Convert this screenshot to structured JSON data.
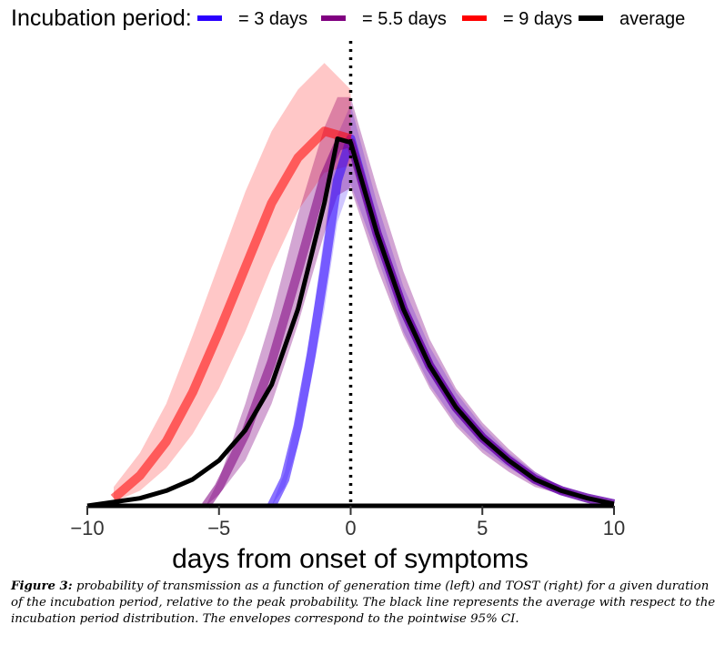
{
  "legend": {
    "title": "Incubation period:",
    "items": [
      {
        "label": "= 3 days",
        "color": "#2a00ff"
      },
      {
        "label": "= 5.5 days",
        "color": "#800080"
      },
      {
        "label": "= 9 days",
        "color": "#ff0000"
      },
      {
        "label": "average",
        "color": "#000000"
      }
    ]
  },
  "caption": {
    "label": "Figure 3:",
    "text": "probability of transmission as a function of generation time (left) and TOST (right) for a given duration of the incubation period, relative to the peak probability. The black line represents the average with respect to the incubation period distribution. The envelopes correspond to the pointwise 95% CI."
  },
  "chart_data": {
    "type": "line",
    "xlabel": "days from onset of symptoms",
    "ylabel": "",
    "xlim": [
      -10,
      10
    ],
    "ylim": [
      0,
      1.0
    ],
    "x_ticks": [
      -10,
      -5,
      0,
      5,
      10
    ],
    "x_tick_labels": [
      "−10",
      "−5",
      "0",
      "5",
      "10"
    ],
    "vertical_reference_line": 0,
    "grid": false,
    "legend_position": "top",
    "series": [
      {
        "name": "= 3 days",
        "color": "#2a00ff",
        "x": [
          -3,
          -2.5,
          -2,
          -1.5,
          -1,
          -0.5,
          0,
          1,
          2,
          3,
          4,
          5,
          6,
          7,
          8,
          9,
          10
        ],
        "y": [
          0,
          0.07,
          0.21,
          0.4,
          0.62,
          0.86,
          0.97,
          0.72,
          0.52,
          0.37,
          0.26,
          0.18,
          0.12,
          0.07,
          0.04,
          0.02,
          0.005
        ],
        "lower": [
          0,
          0.05,
          0.16,
          0.33,
          0.52,
          0.75,
          0.85,
          0.66,
          0.46,
          0.32,
          0.22,
          0.15,
          0.1,
          0.06,
          0.03,
          0.015,
          0.003
        ],
        "upper": [
          0,
          0.09,
          0.26,
          0.47,
          0.72,
          0.98,
          1.06,
          0.8,
          0.58,
          0.42,
          0.3,
          0.21,
          0.14,
          0.09,
          0.05,
          0.025,
          0.008
        ]
      },
      {
        "name": "= 5.5 days",
        "color": "#800080",
        "x": [
          -5.5,
          -5,
          -4,
          -3,
          -2,
          -1,
          -0.5,
          0,
          1,
          2,
          3,
          4,
          5,
          6,
          7,
          8,
          9,
          10
        ],
        "y": [
          0,
          0.05,
          0.19,
          0.38,
          0.62,
          0.87,
          0.95,
          0.96,
          0.72,
          0.52,
          0.37,
          0.26,
          0.18,
          0.12,
          0.07,
          0.04,
          0.02,
          0.005
        ],
        "lower": [
          0,
          0.03,
          0.12,
          0.27,
          0.48,
          0.72,
          0.82,
          0.84,
          0.63,
          0.45,
          0.31,
          0.21,
          0.14,
          0.09,
          0.05,
          0.03,
          0.015,
          0.003
        ],
        "upper": [
          0,
          0.07,
          0.27,
          0.5,
          0.77,
          1.0,
          1.08,
          1.08,
          0.84,
          0.62,
          0.44,
          0.31,
          0.22,
          0.15,
          0.09,
          0.05,
          0.025,
          0.008
        ]
      },
      {
        "name": "= 9 days",
        "color": "#ff0000",
        "x": [
          -9,
          -8,
          -7,
          -6,
          -5,
          -4,
          -3,
          -2,
          -1,
          0
        ],
        "y": [
          0.02,
          0.08,
          0.17,
          0.3,
          0.46,
          0.63,
          0.8,
          0.92,
          0.99,
          0.97
        ],
        "lower": [
          0.01,
          0.04,
          0.1,
          0.19,
          0.31,
          0.46,
          0.63,
          0.78,
          0.88,
          0.9
        ],
        "upper": [
          0.05,
          0.14,
          0.27,
          0.45,
          0.64,
          0.83,
          0.99,
          1.1,
          1.17,
          1.1
        ]
      },
      {
        "name": "average",
        "color": "#000000",
        "x": [
          -10,
          -9,
          -8,
          -7,
          -6,
          -5,
          -4,
          -3,
          -2,
          -1,
          -0.5,
          0,
          1,
          2,
          3,
          4,
          5,
          6,
          7,
          8,
          9,
          10
        ],
        "y": [
          0.0,
          0.01,
          0.02,
          0.04,
          0.07,
          0.12,
          0.2,
          0.32,
          0.52,
          0.8,
          0.97,
          0.96,
          0.72,
          0.52,
          0.37,
          0.26,
          0.18,
          0.12,
          0.07,
          0.04,
          0.02,
          0.005
        ]
      }
    ]
  }
}
